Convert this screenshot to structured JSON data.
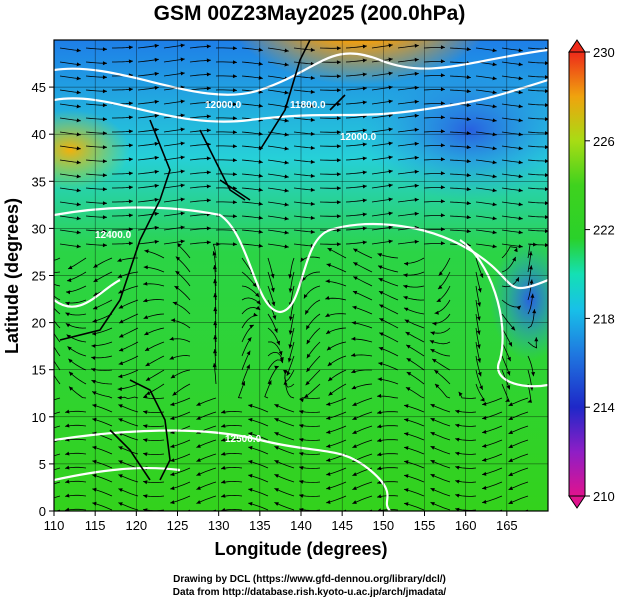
{
  "chart_data": {
    "type": "heatmap",
    "title": "GSM 00Z23May2025 (200.0hPa)",
    "xlabel": "Longitude (degrees)",
    "ylabel": "Latitude  (degrees)",
    "xlim": [
      110,
      170
    ],
    "ylim": [
      0,
      50
    ],
    "x_ticks": [
      "110",
      "115",
      "120",
      "125",
      "130",
      "135",
      "140",
      "145",
      "150",
      "155",
      "160",
      "165"
    ],
    "y_ticks": [
      "0",
      "5",
      "10",
      "15",
      "20",
      "25",
      "30",
      "35",
      "40",
      "45"
    ],
    "colorbar": {
      "range": [
        210,
        230
      ],
      "ticks": [
        "210",
        "214",
        "218",
        "222",
        "226",
        "230"
      ],
      "colors": [
        "#e0138e",
        "#8e1ec6",
        "#1e28c8",
        "#1f78e0",
        "#18c0e8",
        "#14e0b4",
        "#2ad12a",
        "#3fd21e",
        "#a8dc14",
        "#f0a30e",
        "#ee2a1a"
      ]
    },
    "contour_labels": [
      "12000.0",
      "11800.0",
      "12400.0",
      "12500.0",
      "12000.0"
    ],
    "grid": true
  },
  "footer": {
    "line1": "Drawing by DCL (https://www.gfd-dennou.org/library/dcl/)",
    "line2": "Data from http://database.rish.kyoto-u.ac.jp/arch/jmadata/"
  }
}
